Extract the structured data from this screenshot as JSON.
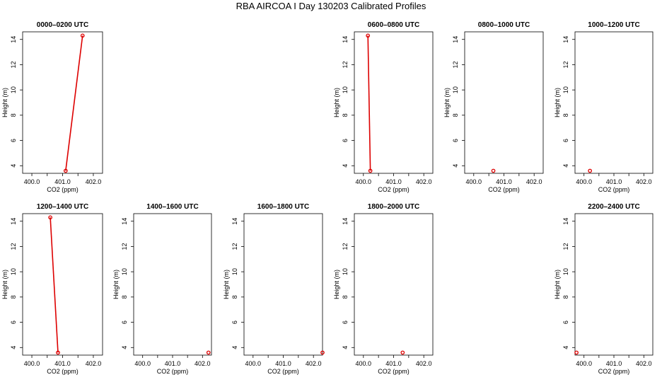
{
  "page": {
    "title": "RBA AIRCOA I  Day 130203  Calibrated Profiles"
  },
  "chart_data": [
    {
      "type": "line",
      "title": "0000–0200 UTC",
      "xlabel": "CO2 (ppm)",
      "ylabel": "Height (m)",
      "xlim": [
        399.7,
        402.3
      ],
      "ylim": [
        3.4,
        14.6
      ],
      "xticks": [
        "400.0",
        "401.0",
        "402.0"
      ],
      "yticks": [
        "4",
        "6",
        "8",
        "10",
        "12",
        "14"
      ],
      "color": "#dd0000",
      "points": [
        {
          "x": 401.1,
          "y": 3.6
        },
        {
          "x": 401.65,
          "y": 14.3
        }
      ]
    },
    {
      "type": "line",
      "title": "0600–0800 UTC",
      "xlabel": "CO2 (ppm)",
      "ylabel": "Height (m)",
      "xlim": [
        399.7,
        402.3
      ],
      "ylim": [
        3.4,
        14.6
      ],
      "xticks": [
        "400.0",
        "401.0",
        "402.0"
      ],
      "yticks": [
        "4",
        "6",
        "8",
        "10",
        "12",
        "14"
      ],
      "color": "#dd0000",
      "points": [
        {
          "x": 400.23,
          "y": 3.6
        },
        {
          "x": 400.15,
          "y": 14.3
        }
      ]
    },
    {
      "type": "scatter",
      "title": "0800–1000 UTC",
      "xlabel": "CO2 (ppm)",
      "ylabel": "Height (m)",
      "xlim": [
        399.7,
        402.3
      ],
      "ylim": [
        3.4,
        14.6
      ],
      "xticks": [
        "400.0",
        "401.0",
        "402.0"
      ],
      "yticks": [
        "4",
        "6",
        "8",
        "10",
        "12",
        "14"
      ],
      "color": "#dd0000",
      "points": [
        {
          "x": 400.65,
          "y": 3.6
        }
      ]
    },
    {
      "type": "scatter",
      "title": "1000–1200 UTC",
      "xlabel": "CO2 (ppm)",
      "ylabel": "Height (m)",
      "xlim": [
        399.7,
        402.3
      ],
      "ylim": [
        3.4,
        14.6
      ],
      "xticks": [
        "400.0",
        "401.0",
        "402.0"
      ],
      "yticks": [
        "4",
        "6",
        "8",
        "10",
        "12",
        "14"
      ],
      "color": "#dd0000",
      "points": [
        {
          "x": 400.2,
          "y": 3.6
        }
      ]
    },
    {
      "type": "line",
      "title": "1200–1400 UTC",
      "xlabel": "CO2 (ppm)",
      "ylabel": "Height (m)",
      "xlim": [
        399.7,
        402.3
      ],
      "ylim": [
        3.4,
        14.6
      ],
      "xticks": [
        "400.0",
        "401.0",
        "402.0"
      ],
      "yticks": [
        "4",
        "6",
        "8",
        "10",
        "12",
        "14"
      ],
      "color": "#dd0000",
      "points": [
        {
          "x": 400.85,
          "y": 3.6
        },
        {
          "x": 400.6,
          "y": 14.3
        }
      ]
    },
    {
      "type": "scatter",
      "title": "1400–1600 UTC",
      "xlabel": "CO2 (ppm)",
      "ylabel": "Height (m)",
      "xlim": [
        399.7,
        402.3
      ],
      "ylim": [
        3.4,
        14.6
      ],
      "xticks": [
        "400.0",
        "401.0",
        "402.0"
      ],
      "yticks": [
        "4",
        "6",
        "8",
        "10",
        "12",
        "14"
      ],
      "color": "#dd0000",
      "points": [
        {
          "x": 402.2,
          "y": 3.6
        }
      ]
    },
    {
      "type": "scatter",
      "title": "1600–1800 UTC",
      "xlabel": "CO2 (ppm)",
      "ylabel": "Height (m)",
      "xlim": [
        399.7,
        402.3
      ],
      "ylim": [
        3.4,
        14.6
      ],
      "xticks": [
        "400.0",
        "401.0",
        "402.0"
      ],
      "yticks": [
        "4",
        "6",
        "8",
        "10",
        "12",
        "14"
      ],
      "color": "#dd0000",
      "points": [
        {
          "x": 402.3,
          "y": 3.6
        }
      ]
    },
    {
      "type": "scatter",
      "title": "1800–2000 UTC",
      "xlabel": "CO2 (ppm)",
      "ylabel": "Height (m)",
      "xlim": [
        399.7,
        402.3
      ],
      "ylim": [
        3.4,
        14.6
      ],
      "xticks": [
        "400.0",
        "401.0",
        "402.0"
      ],
      "yticks": [
        "4",
        "6",
        "8",
        "10",
        "12",
        "14"
      ],
      "color": "#dd0000",
      "points": [
        {
          "x": 401.3,
          "y": 3.6
        }
      ]
    },
    {
      "type": "scatter",
      "title": "2200–2400 UTC",
      "xlabel": "CO2 (ppm)",
      "ylabel": "Height (m)",
      "xlim": [
        399.7,
        402.3
      ],
      "ylim": [
        3.4,
        14.6
      ],
      "xticks": [
        "400.0",
        "401.0",
        "402.0"
      ],
      "yticks": [
        "4",
        "6",
        "8",
        "10",
        "12",
        "14"
      ],
      "color": "#dd0000",
      "points": [
        {
          "x": 399.75,
          "y": 3.6
        }
      ]
    }
  ]
}
